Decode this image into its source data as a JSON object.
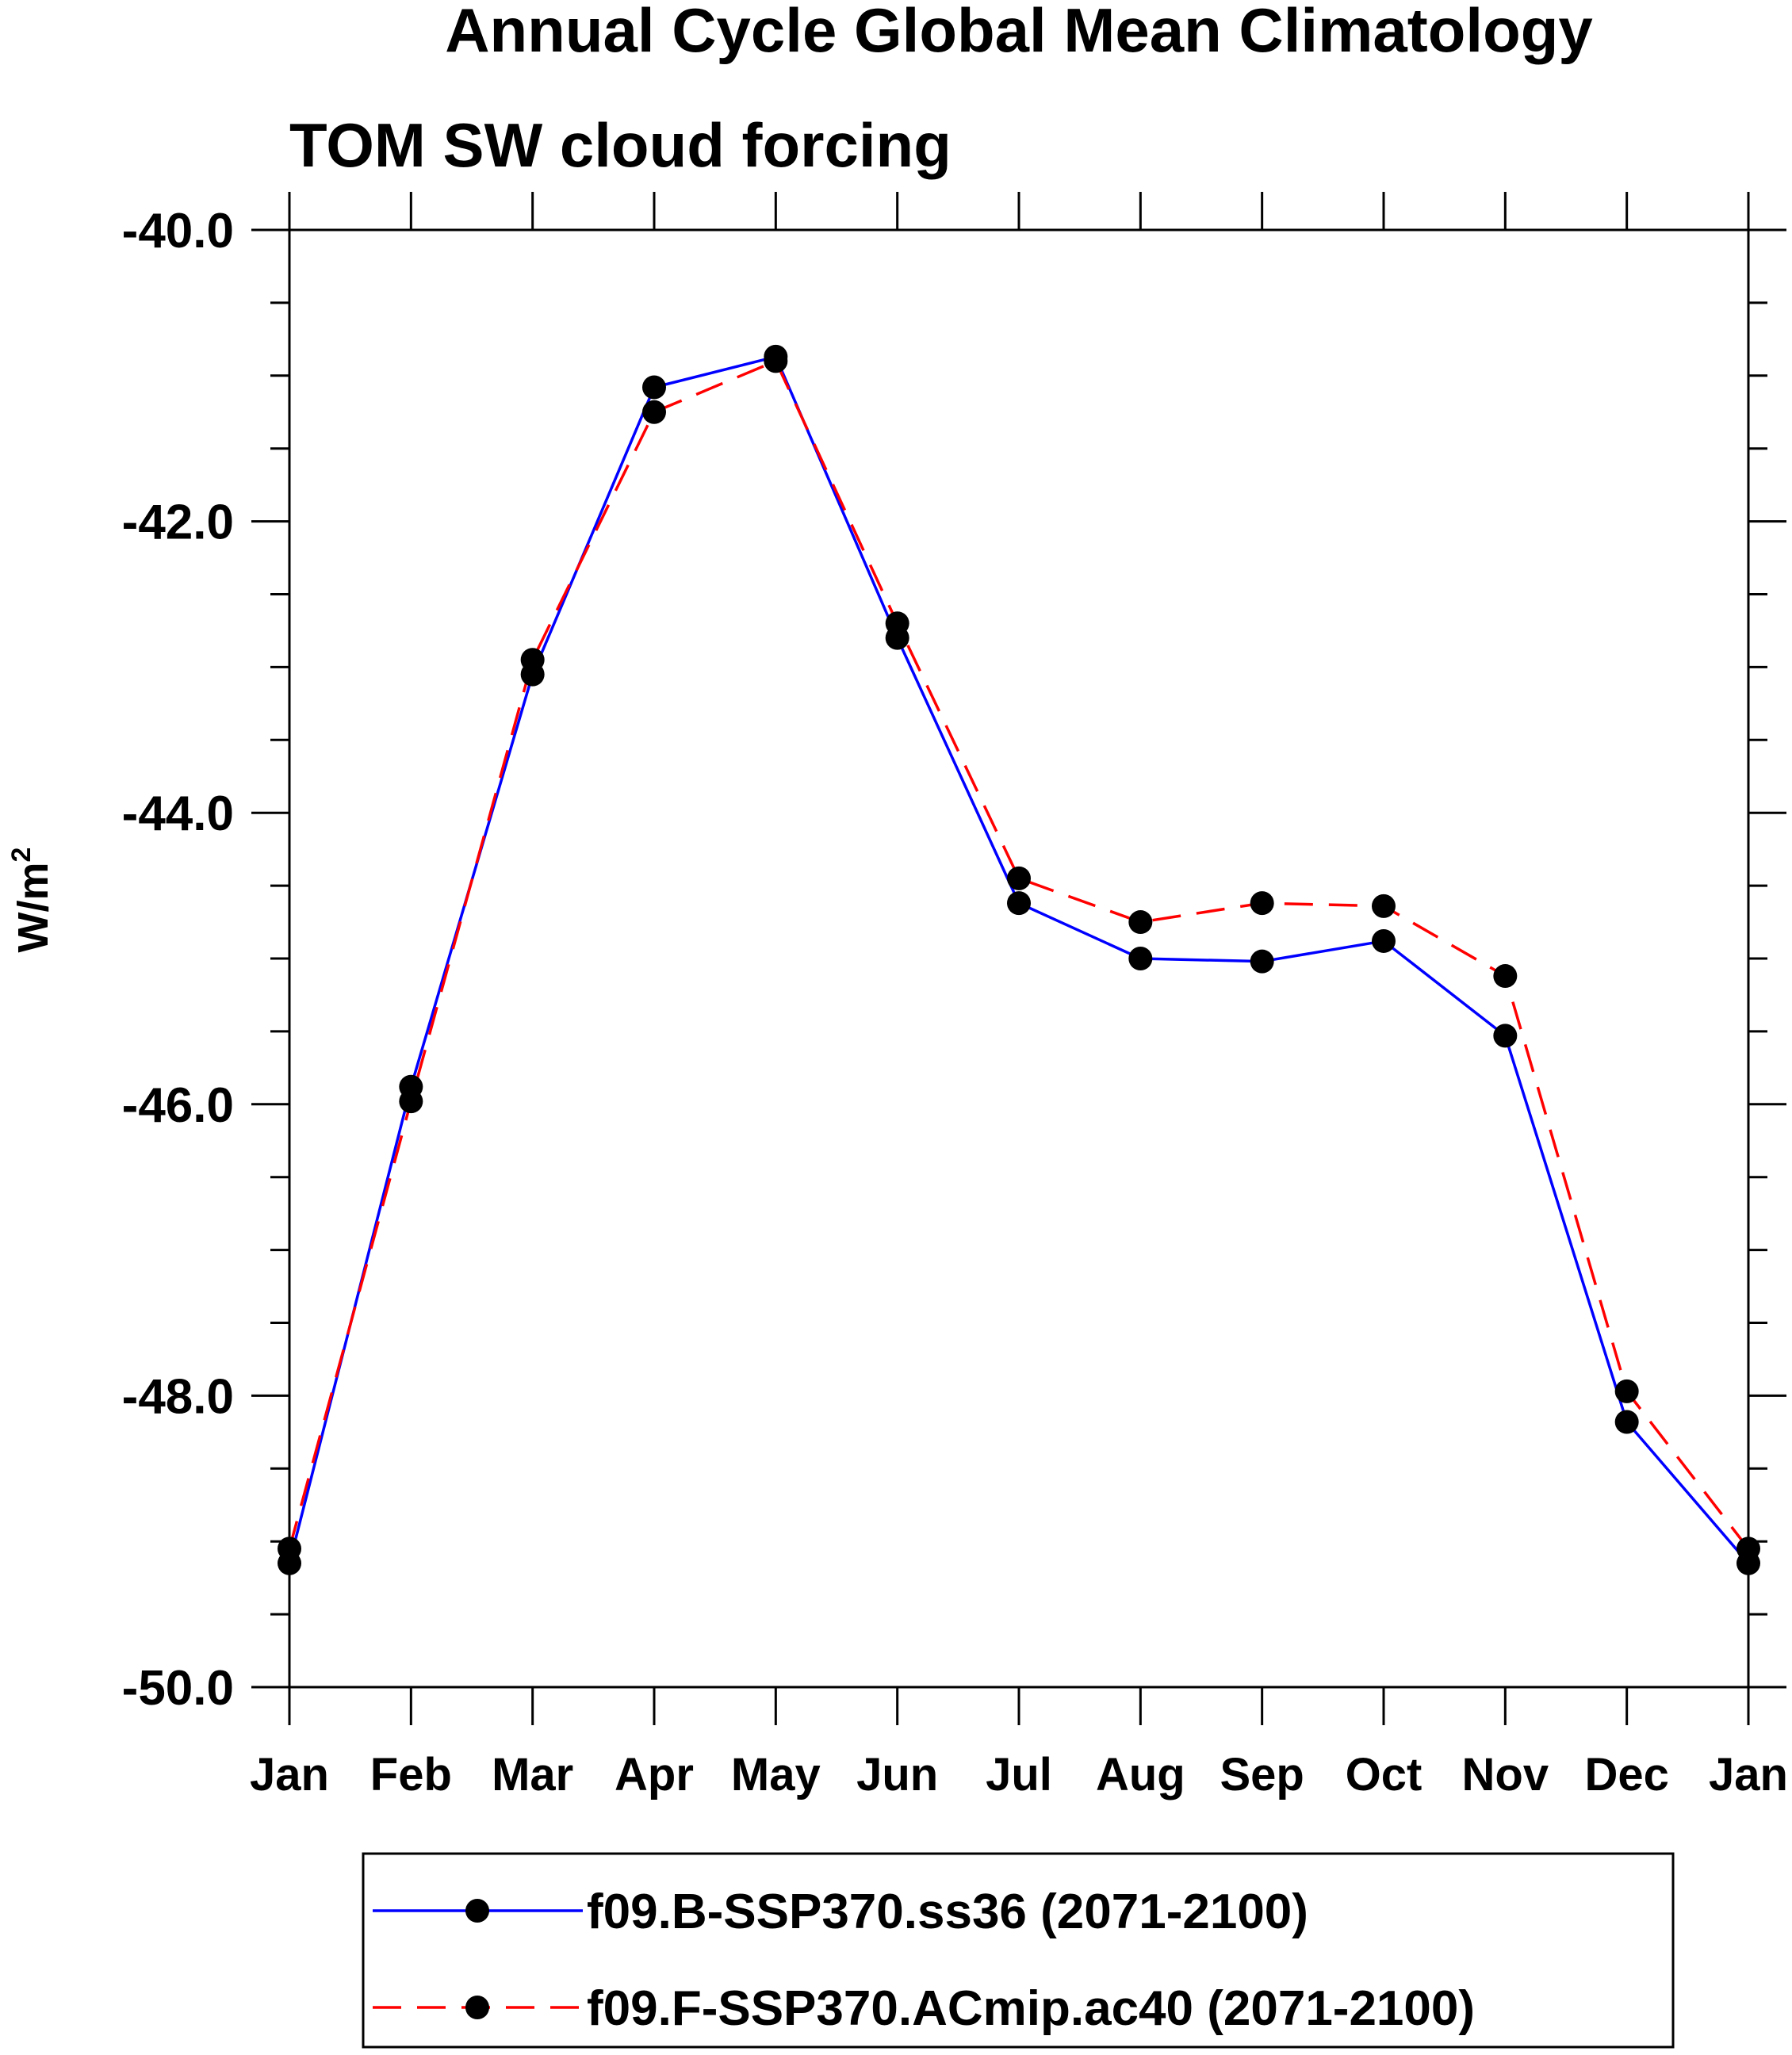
{
  "chart_data": {
    "type": "line",
    "title": "Annual Cycle Global Mean Climatology",
    "subtitle": "TOM SW cloud forcing",
    "ylabel": "W/m",
    "ylabel_superscript": "2",
    "xlabel": "",
    "categories": [
      "Jan",
      "Feb",
      "Mar",
      "Apr",
      "May",
      "Jun",
      "Jul",
      "Aug",
      "Sep",
      "Oct",
      "Nov",
      "Dec",
      "Jan"
    ],
    "ylim": [
      -50,
      -40
    ],
    "yticks": [
      -50,
      -48,
      -46,
      -44,
      -42,
      -40
    ],
    "ytick_labels": [
      "-50.0",
      "-48.0",
      "-46.0",
      "-44.0",
      "-42.0",
      "-40.0"
    ],
    "grid": false,
    "legend_position": "bottom",
    "series": [
      {
        "name": "f09.B-SSP370.ss36 (2071-2100)",
        "color": "#0000ff",
        "dash": "solid",
        "marker": "filled-circle",
        "values": [
          -49.15,
          -45.88,
          -43.05,
          -41.08,
          -40.87,
          -42.8,
          -44.62,
          -45.0,
          -45.02,
          -44.88,
          -45.53,
          -48.18,
          -49.15
        ]
      },
      {
        "name": "f09.F-SSP370.ACmip.ac40 (2071-2100)",
        "color": "#ff0000",
        "dash": "dashed",
        "marker": "filled-circle",
        "values": [
          -49.05,
          -45.98,
          -42.95,
          -41.25,
          -40.9,
          -42.7,
          -44.45,
          -44.75,
          -44.62,
          -44.64,
          -45.12,
          -47.97,
          -49.05
        ]
      }
    ]
  }
}
